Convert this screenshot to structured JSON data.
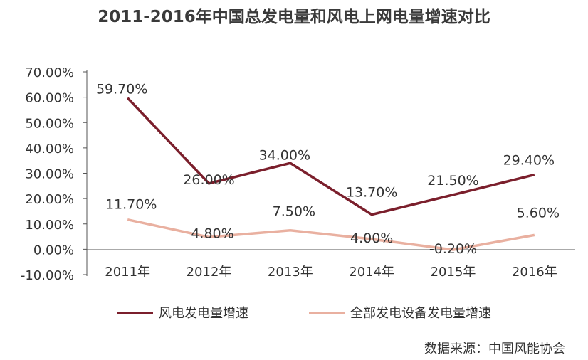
{
  "title": "2011-2016年中国总发电量和风电上网电量增速对比",
  "source": "数据来源：中国风能协会",
  "colors": {
    "wind": "#7b1f2c",
    "total": "#e9b0a0",
    "axis": "#555555"
  },
  "chart_data": {
    "type": "line",
    "title": "2011-2016年中国总发电量和风电上网电量增速对比",
    "categories": [
      "2011年",
      "2012年",
      "2013年",
      "2014年",
      "2015年",
      "2016年"
    ],
    "series": [
      {
        "name": "风电发电量增速",
        "values": [
          59.7,
          26.0,
          34.0,
          13.7,
          21.5,
          29.4
        ],
        "labels": [
          "59.70%",
          "26.00%",
          "34.00%",
          "13.70%",
          "21.50%",
          "29.40%"
        ]
      },
      {
        "name": "全部发电设备发电量增速",
        "values": [
          11.7,
          4.8,
          7.5,
          4.0,
          -0.2,
          5.6
        ],
        "labels": [
          "11.70%",
          "4.80%",
          "7.50%",
          "4.00%",
          "-0.20%",
          "5.60%"
        ]
      }
    ],
    "y_ticks": [
      70,
      60,
      50,
      40,
      30,
      20,
      10,
      0,
      -10
    ],
    "y_tick_labels": [
      "70.00%",
      "60.00%",
      "50.00%",
      "40.00%",
      "30.00%",
      "20.00%",
      "10.00%",
      "0.00%",
      "-10.00%"
    ],
    "ylim": [
      -10,
      70
    ],
    "grid": false,
    "legend_position": "bottom"
  }
}
